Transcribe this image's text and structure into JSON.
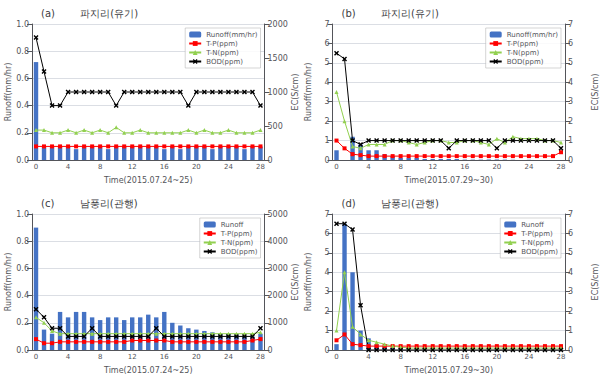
{
  "chart_data": [
    {
      "type": "bar",
      "title": "(a)        파지리(유기)",
      "xlabel": "Time(2015.07.24~25)",
      "ylabel": "Runoff(mm/hr)",
      "y2label": "EC(S/cm)",
      "categories": [
        "0",
        null,
        null,
        null,
        "4",
        null,
        null,
        null,
        "8",
        null,
        null,
        null,
        "12",
        null,
        null,
        null,
        "16",
        null,
        null,
        null,
        "20",
        null,
        null,
        null,
        "24",
        null,
        null,
        null,
        "28"
      ],
      "ylim": [
        0,
        1.0
      ],
      "yticks": [
        {
          "value": 0,
          "label": "0.0"
        },
        0.2,
        0.4,
        0.6,
        0.8,
        {
          "value": 1.0,
          "label": "1.0"
        }
      ],
      "y2lim": [
        0,
        2000
      ],
      "y2ticks": [
        0,
        500,
        1000,
        1500,
        2000
      ],
      "grid": true,
      "legend": "upper right",
      "series": [
        {
          "name": "Runoff(mm/hr)",
          "type": "bar",
          "color": "#4472C4",
          "values": [
            0.72,
            0.1,
            0.1,
            0.1,
            0.1,
            0.08,
            0.1,
            0.1,
            0.1,
            0.08,
            0.1,
            0.1,
            0.1,
            0.1,
            0.1,
            0.1,
            0.08,
            0.1,
            0.08,
            0.1,
            0.1,
            0.1,
            0.08,
            0.1,
            0.1,
            0.1,
            0.08,
            0.1,
            0.1
          ]
        },
        {
          "name": "T-P(ppm)",
          "type": "line",
          "color": "#FF0000",
          "marker": "square",
          "values": [
            0.1,
            0.1,
            0.1,
            0.1,
            0.1,
            0.1,
            0.1,
            0.1,
            0.1,
            0.1,
            0.1,
            0.1,
            0.1,
            0.1,
            0.1,
            0.1,
            0.1,
            0.1,
            0.1,
            0.1,
            0.1,
            0.1,
            0.1,
            0.1,
            0.1,
            0.1,
            0.1,
            0.1,
            0.1
          ]
        },
        {
          "name": "T-N(ppm)",
          "type": "line",
          "color": "#92D050",
          "marker": "triangle",
          "values": [
            0.22,
            0.22,
            0.2,
            0.2,
            0.22,
            0.2,
            0.22,
            0.2,
            0.22,
            0.2,
            0.24,
            0.2,
            0.2,
            0.22,
            0.2,
            0.2,
            0.2,
            0.2,
            0.2,
            0.22,
            0.2,
            0.22,
            0.2,
            0.2,
            0.22,
            0.2,
            0.2,
            0.2,
            0.22
          ]
        },
        {
          "name": "BOD(ppm)",
          "type": "line",
          "color": "#000000",
          "marker": "x",
          "axis": "y2",
          "values": [
            1800,
            1300,
            800,
            800,
            1000,
            1000,
            1000,
            1000,
            1000,
            1000,
            800,
            1000,
            1000,
            1000,
            1000,
            1000,
            1000,
            1000,
            1000,
            800,
            1000,
            1000,
            1000,
            1000,
            1000,
            1000,
            1000,
            1000,
            800
          ]
        }
      ]
    },
    {
      "type": "bar",
      "title": "(b)        파지리(유기)",
      "xlabel": "Time(2015.07.29~30)",
      "ylabel": "Runoff(mm/hr)",
      "y2label": "EC(S/cm)",
      "categories": [
        "0",
        null,
        null,
        null,
        "4",
        null,
        null,
        null,
        "8",
        null,
        null,
        null,
        "12",
        null,
        null,
        null,
        "16",
        null,
        null,
        null,
        "20",
        null,
        null,
        null,
        "24",
        null,
        null,
        null,
        "28"
      ],
      "ylim": [
        0,
        7
      ],
      "yticks": [
        0,
        1,
        2,
        3,
        4,
        5,
        6,
        7
      ],
      "y2lim": [
        0,
        7
      ],
      "y2ticks": [
        0,
        1,
        2,
        3,
        4,
        5,
        6,
        7
      ],
      "grid": true,
      "legend": "upper right",
      "series": [
        {
          "name": "Runoff(mm/hr)",
          "type": "bar",
          "color": "#4472C4",
          "values": [
            0.5,
            0.0,
            1.2,
            0.8,
            0.5,
            0.5,
            0.3,
            0.2,
            0.1,
            0.1,
            0.1,
            0.05,
            0.05,
            0.05,
            0.05,
            0.05,
            0.02,
            0.02,
            0.02,
            0.02,
            0.02,
            0.02,
            0.01,
            0.0,
            0.01,
            0.0,
            0.0,
            0.0,
            0.0
          ]
        },
        {
          "name": "T-P(ppm)",
          "type": "line",
          "color": "#FF0000",
          "marker": "square",
          "values": [
            1.0,
            0.6,
            0.3,
            0.25,
            0.2,
            0.2,
            0.2,
            0.2,
            0.2,
            0.2,
            0.2,
            0.2,
            0.2,
            0.2,
            0.2,
            0.2,
            0.2,
            0.2,
            0.2,
            0.2,
            0.2,
            0.2,
            0.2,
            0.2,
            0.2,
            0.2,
            0.2,
            0.2,
            0.4
          ]
        },
        {
          "name": "T-N(ppm)",
          "type": "line",
          "color": "#92D050",
          "marker": "triangle",
          "values": [
            3.5,
            2.0,
            0.7,
            0.6,
            0.8,
            0.8,
            0.8,
            1.0,
            1.0,
            0.9,
            0.8,
            0.9,
            1.0,
            1.0,
            0.9,
            0.9,
            1.0,
            1.0,
            0.9,
            0.8,
            1.1,
            0.9,
            1.2,
            1.1,
            1.1,
            1.1,
            1.0,
            1.0,
            0.9
          ]
        },
        {
          "name": "BOD(ppm)",
          "type": "line",
          "color": "#000000",
          "marker": "x",
          "axis": "y2",
          "values": [
            5.5,
            5.2,
            1.0,
            0.8,
            1.0,
            1.0,
            1.0,
            1.0,
            1.0,
            1.0,
            1.0,
            1.0,
            1.0,
            1.0,
            0.6,
            1.0,
            1.0,
            1.0,
            1.0,
            1.0,
            0.6,
            1.0,
            1.0,
            1.0,
            1.0,
            1.0,
            1.0,
            1.0,
            0.6
          ]
        }
      ]
    },
    {
      "type": "bar",
      "title": "(c)        남풍리(관행)",
      "xlabel": "Time(2015.07.24~25)",
      "ylabel": "Runoff(mm/hr)",
      "y2label": "EC(S/cm)",
      "categories": [
        "0",
        null,
        null,
        null,
        "4",
        null,
        null,
        null,
        "8",
        null,
        null,
        null,
        "12",
        null,
        null,
        null,
        "16",
        null,
        null,
        null,
        "20",
        null,
        null,
        null,
        "24",
        null,
        null,
        null,
        "28"
      ],
      "ylim": [
        0,
        1.0
      ],
      "yticks": [
        {
          "value": 0,
          "label": "0.0"
        },
        0.2,
        0.4,
        0.6,
        0.8,
        {
          "value": 1.0,
          "label": "1.0"
        }
      ],
      "y2lim": [
        0,
        5000
      ],
      "y2ticks": [
        0,
        1000,
        2000,
        3000,
        4000,
        5000
      ],
      "grid": true,
      "legend": "upper right",
      "series": [
        {
          "name": "Runoff",
          "type": "bar",
          "color": "#4472C4",
          "values": [
            0.9,
            0.15,
            0.12,
            0.28,
            0.24,
            0.28,
            0.28,
            0.24,
            0.22,
            0.24,
            0.24,
            0.22,
            0.24,
            0.24,
            0.26,
            0.24,
            0.28,
            0.2,
            0.18,
            0.16,
            0.15,
            0.14,
            0.13,
            0.12,
            0.12,
            0.11,
            0.1,
            0.1,
            0.12
          ]
        },
        {
          "name": "T-P(ppm)",
          "type": "line",
          "color": "#FF0000",
          "marker": "square",
          "values": [
            0.08,
            0.05,
            0.05,
            0.06,
            0.06,
            0.06,
            0.06,
            0.06,
            0.06,
            0.06,
            0.06,
            0.06,
            0.07,
            0.07,
            0.07,
            0.07,
            0.07,
            0.06,
            0.06,
            0.06,
            0.06,
            0.06,
            0.06,
            0.06,
            0.06,
            0.06,
            0.06,
            0.07,
            0.08
          ]
        },
        {
          "name": "T-N(ppm)",
          "type": "line",
          "color": "#92D050",
          "marker": "triangle",
          "values": [
            0.24,
            0.2,
            0.14,
            0.12,
            0.12,
            0.12,
            0.12,
            0.12,
            0.12,
            0.12,
            0.12,
            0.12,
            0.12,
            0.12,
            0.12,
            0.12,
            0.12,
            0.12,
            0.12,
            0.12,
            0.12,
            0.12,
            0.12,
            0.12,
            0.12,
            0.12,
            0.12,
            0.12,
            0.13
          ]
        },
        {
          "name": "BOD(ppm)",
          "type": "line",
          "color": "#000000",
          "marker": "x",
          "axis": "y2",
          "values": [
            1500,
            1200,
            800,
            800,
            500,
            500,
            500,
            800,
            500,
            500,
            500,
            500,
            500,
            500,
            500,
            800,
            500,
            500,
            500,
            500,
            500,
            500,
            500,
            500,
            500,
            500,
            500,
            500,
            800
          ]
        }
      ]
    },
    {
      "type": "bar",
      "title": "(d)        남풍리(관행)",
      "xlabel": "Time(2015.07.29~30)",
      "ylabel": "Runoff(mm/hr)",
      "y2label": "EC(S/cm)",
      "categories": [
        "0",
        null,
        null,
        null,
        "4",
        null,
        null,
        null,
        "8",
        null,
        null,
        null,
        "12",
        null,
        null,
        null,
        "16",
        null,
        null,
        null,
        "20",
        null,
        null,
        null,
        "24",
        null,
        null,
        null,
        "28"
      ],
      "ylim": [
        0,
        7
      ],
      "yticks": [
        0,
        1,
        2,
        3,
        4,
        5,
        6,
        7
      ],
      "y2lim": [
        0,
        7
      ],
      "y2ticks": [
        0,
        1,
        2,
        3,
        4,
        5,
        6,
        7
      ],
      "grid": true,
      "legend": "upper right",
      "series": [
        {
          "name": "Runoff",
          "type": "bar",
          "color": "#4472C4",
          "values": [
            0.3,
            6.5,
            4.0,
            1.0,
            0.6,
            0.3,
            0.2,
            0.1,
            0.08,
            0.06,
            0.05,
            0.04,
            0.04,
            0.03,
            0.03,
            0.03,
            0.02,
            0.02,
            0.02,
            0.02,
            0.02,
            0.01,
            0.01,
            0.01,
            0.01,
            0.01,
            0.01,
            0.01,
            0.01
          ]
        },
        {
          "name": "T-P(ppm)",
          "type": "line",
          "color": "#FF0000",
          "marker": "square",
          "values": [
            0.5,
            0.8,
            0.3,
            0.25,
            0.2,
            0.2,
            0.2,
            0.2,
            0.2,
            0.2,
            0.2,
            0.2,
            0.2,
            0.2,
            0.2,
            0.2,
            0.2,
            0.2,
            0.2,
            0.2,
            0.2,
            0.2,
            0.2,
            0.2,
            0.2,
            0.2,
            0.2,
            0.2,
            0.2
          ]
        },
        {
          "name": "T-N(ppm)",
          "type": "line",
          "color": "#92D050",
          "marker": "triangle",
          "values": [
            1.0,
            4.0,
            1.2,
            0.8,
            0.5,
            0.4,
            0.3,
            0.2,
            0.15,
            0.1,
            0.1,
            0.1,
            0.1,
            0.1,
            0.1,
            0.1,
            0.1,
            0.1,
            0.1,
            0.1,
            0.1,
            0.1,
            0.1,
            0.1,
            0.1,
            0.1,
            0.1,
            0.1,
            0.1
          ]
        },
        {
          "name": "BOD(ppm)",
          "type": "line",
          "color": "#000000",
          "marker": "x",
          "axis": "y2",
          "values": [
            6.5,
            6.5,
            6.2,
            2.3,
            0.0,
            0.0,
            0.0,
            0.0,
            0.0,
            0.0,
            0.0,
            0.0,
            0.0,
            0.0,
            0.0,
            0.0,
            0.0,
            0.0,
            0.0,
            0.0,
            0.0,
            0.0,
            0.0,
            0.0,
            0.0,
            0.0,
            0.0,
            0.0,
            0.0
          ]
        }
      ]
    }
  ]
}
